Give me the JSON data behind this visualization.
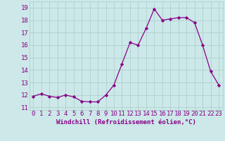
{
  "x": [
    0,
    1,
    2,
    3,
    4,
    5,
    6,
    7,
    8,
    9,
    10,
    11,
    12,
    13,
    14,
    15,
    16,
    17,
    18,
    19,
    20,
    21,
    22,
    23
  ],
  "y": [
    11.9,
    12.1,
    11.9,
    11.8,
    12.0,
    11.85,
    11.5,
    11.45,
    11.45,
    12.0,
    12.8,
    14.5,
    16.2,
    16.0,
    17.35,
    18.9,
    18.0,
    18.1,
    18.2,
    18.2,
    17.8,
    16.0,
    13.9,
    12.8
  ],
  "line_color": "#880088",
  "marker": "D",
  "marker_size": 2.2,
  "bg_color": "#cce8e8",
  "grid_color": "#aacccc",
  "xlabel": "Windchill (Refroidissement éolien,°C)",
  "ylabel_ticks": [
    11,
    12,
    13,
    14,
    15,
    16,
    17,
    18,
    19
  ],
  "ylim": [
    10.8,
    19.5
  ],
  "xlim": [
    -0.5,
    23.5
  ],
  "xlabel_color": "#880088",
  "tick_color": "#880088",
  "xlabel_fontsize": 6.5,
  "tick_fontsize": 6.5
}
